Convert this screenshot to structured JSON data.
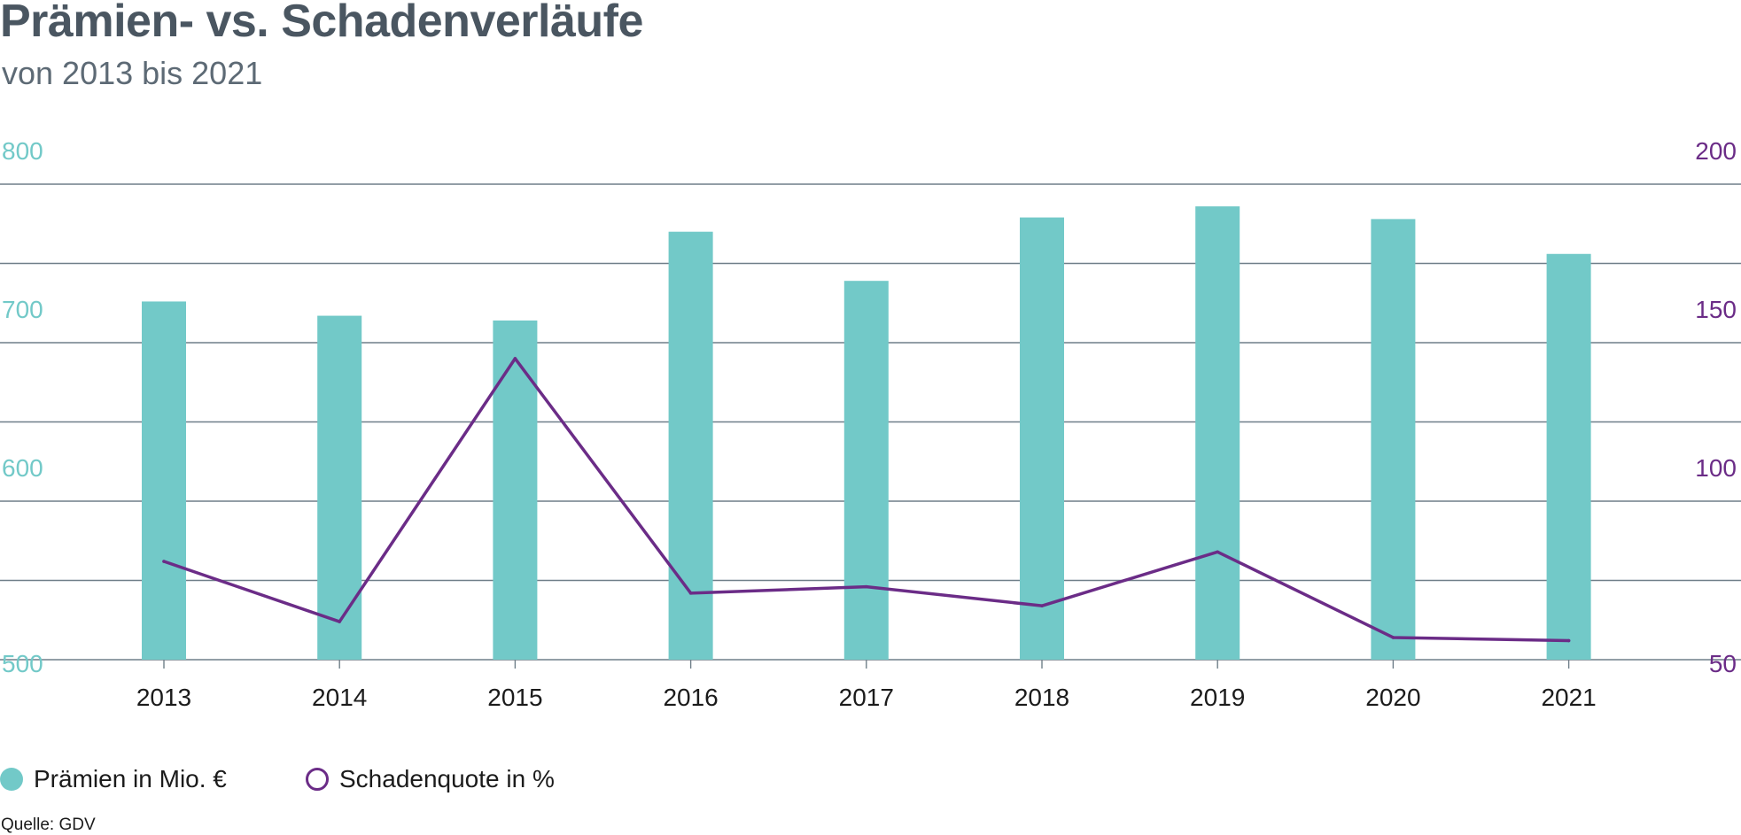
{
  "title": "Prämien- vs. Schadenverläufe",
  "subtitle": "von 2013 bis 2021",
  "source": "Quelle: GDV",
  "colors": {
    "bars": "#72c9c8",
    "line": "#6b2c87",
    "grid": "#6f7f89",
    "title": "#4a5661"
  },
  "legend": [
    {
      "label": "Prämien in Mio. €",
      "marker": "filled-circle",
      "color": "#72c9c8"
    },
    {
      "label": "Schadenquote in %",
      "marker": "hollow-circle",
      "color": "#6b2c87"
    }
  ],
  "chart_data": {
    "type": "bar",
    "categories": [
      "2013",
      "2014",
      "2015",
      "2016",
      "2017",
      "2018",
      "2019",
      "2020",
      "2021"
    ],
    "series": [
      {
        "name": "Prämien in Mio. €",
        "type": "bar",
        "axis": "left",
        "values": [
          726,
          717,
          714,
          770,
          739,
          779,
          786,
          778,
          756
        ]
      },
      {
        "name": "Schadenquote in %",
        "type": "line",
        "axis": "right",
        "values": [
          81,
          62,
          145,
          71,
          73,
          67,
          84,
          57,
          56
        ]
      }
    ],
    "y_left": {
      "ylim": [
        500,
        800
      ],
      "ticks": [
        "500",
        "600",
        "700",
        "800"
      ]
    },
    "y_right": {
      "ylim": [
        50,
        200
      ],
      "ticks": [
        "50",
        "100",
        "150",
        "200"
      ]
    },
    "grid": true,
    "legend_position": "bottom-left"
  }
}
